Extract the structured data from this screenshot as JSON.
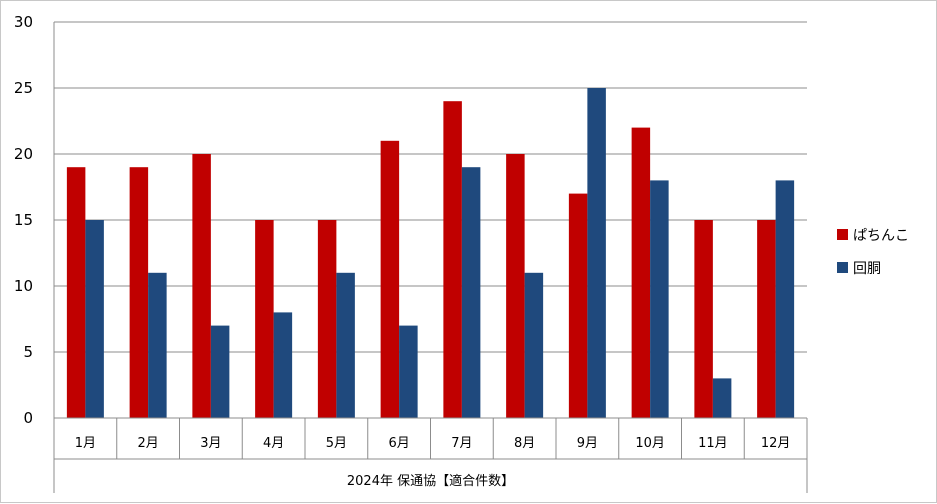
{
  "chart_data": {
    "type": "bar",
    "categories": [
      "1月",
      "2月",
      "3月",
      "4月",
      "5月",
      "6月",
      "7月",
      "8月",
      "9月",
      "10月",
      "11月",
      "12月"
    ],
    "series": [
      {
        "name": "ぱちんこ",
        "color": "#c00000",
        "values": [
          19,
          19,
          20,
          15,
          15,
          21,
          24,
          20,
          17,
          22,
          15,
          15
        ]
      },
      {
        "name": "回胴",
        "color": "#1f497d",
        "values": [
          15,
          11,
          7,
          8,
          11,
          7,
          19,
          11,
          25,
          18,
          3,
          18
        ]
      }
    ],
    "xlabel": "2024年 保通協【適合件数】",
    "ylabel": "",
    "ylim": [
      0,
      30
    ],
    "yticks": [
      0,
      5,
      10,
      15,
      20,
      25,
      30
    ],
    "grid": true,
    "legend_position": "right"
  }
}
